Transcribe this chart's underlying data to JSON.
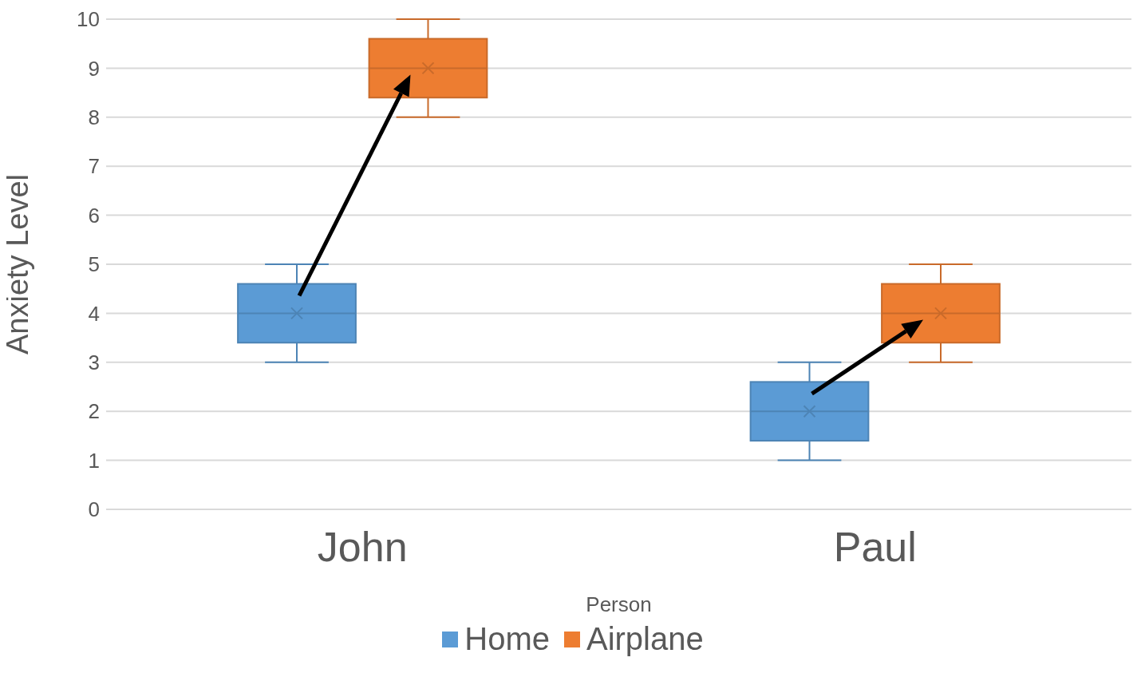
{
  "chart_data": {
    "type": "box",
    "xlabel": "Person",
    "ylabel": "Anxiety Level",
    "categories": [
      "John",
      "Paul"
    ],
    "ylim": [
      0,
      10
    ],
    "yticks": [
      0,
      1,
      2,
      3,
      4,
      5,
      6,
      7,
      8,
      9,
      10
    ],
    "grid": "y",
    "legend": "bottom",
    "series": [
      {
        "name": "Home",
        "color": "#5b9bd5",
        "boxes": [
          {
            "low": 3,
            "q1": 3.4,
            "median": 4,
            "q3": 4.6,
            "high": 5,
            "mean": 4
          },
          {
            "low": 1,
            "q1": 1.4,
            "median": 2,
            "q3": 2.6,
            "high": 3,
            "mean": 2
          }
        ]
      },
      {
        "name": "Airplane",
        "color": "#ed7d31",
        "boxes": [
          {
            "low": 8,
            "q1": 8.4,
            "median": 9,
            "q3": 9.6,
            "high": 10,
            "mean": 9
          },
          {
            "low": 3,
            "q1": 3.4,
            "median": 4,
            "q3": 4.6,
            "high": 5,
            "mean": 4
          }
        ]
      }
    ]
  }
}
